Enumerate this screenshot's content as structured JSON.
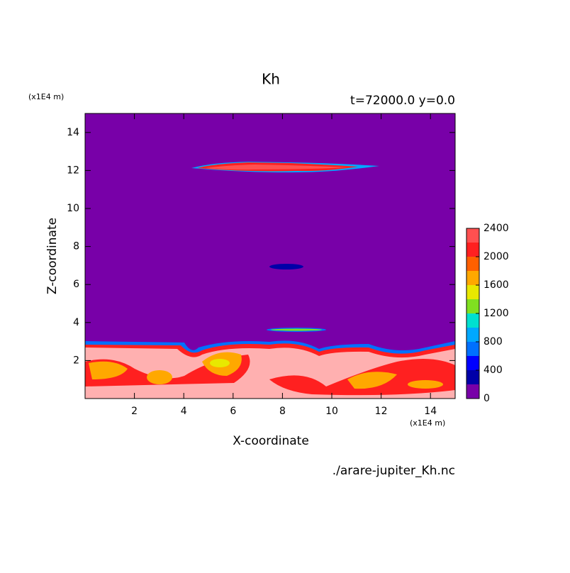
{
  "chart_data": {
    "type": "contour",
    "title": "Kh",
    "subtitle": "t=72000.0 y=0.0",
    "x_label": "X-coordinate",
    "y_label": "Z-coordinate",
    "x_unit": "(x1E4 m)",
    "y_unit": "(x1E4 m)",
    "source": "./arare-jupiter_Kh.nc",
    "xlim": [
      0,
      15
    ],
    "xticks": [
      2,
      4,
      6,
      8,
      10,
      12,
      14
    ],
    "ylim": [
      0,
      15
    ],
    "yticks": [
      2,
      4,
      6,
      8,
      10,
      12,
      14
    ],
    "colorbar": {
      "levels": [
        0,
        200,
        400,
        600,
        800,
        1000,
        1200,
        1400,
        1600,
        1800,
        2000,
        2200,
        2400
      ],
      "colors": [
        "#7800a8",
        "#0000a8",
        "#0000ff",
        "#0070ff",
        "#00a8ff",
        "#00e0d0",
        "#80e020",
        "#e8e800",
        "#ffa800",
        "#ff6000",
        "#ff2020",
        "#ff5050"
      ],
      "ticks": [
        0,
        400,
        800,
        1200,
        1600,
        2000,
        2400
      ],
      "top_color": "#ffb0b0"
    }
  }
}
